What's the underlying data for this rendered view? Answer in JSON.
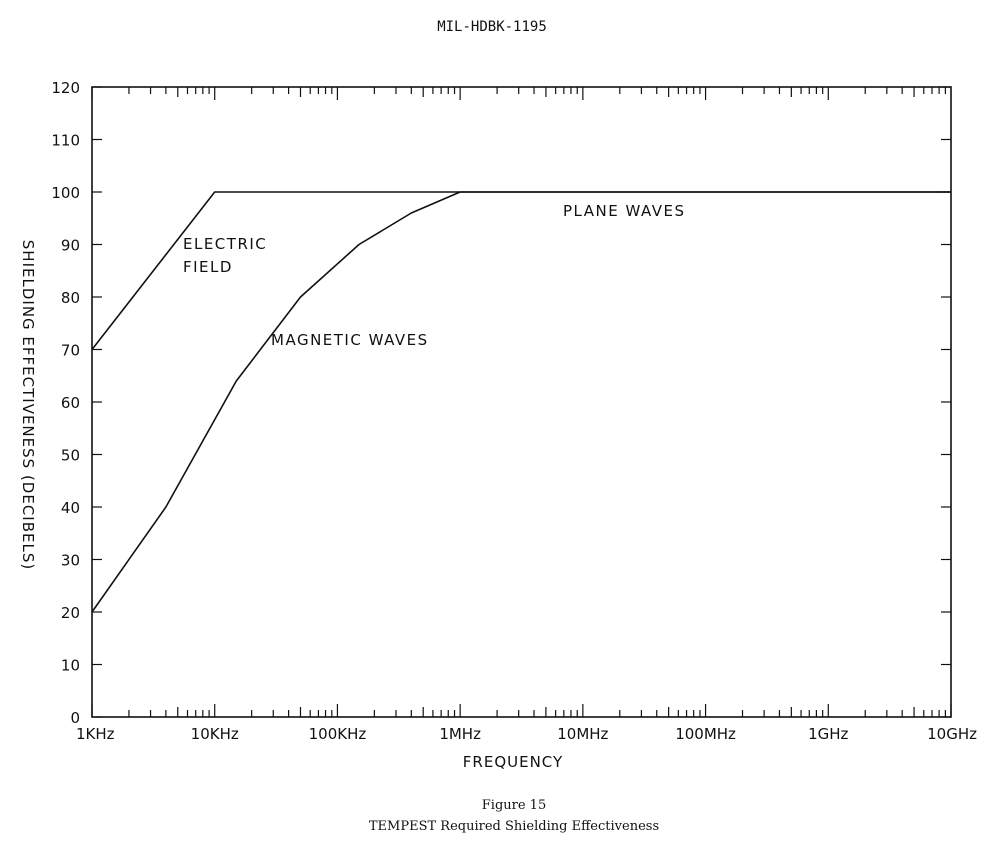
{
  "document": {
    "header": "MIL-HDBK-1195",
    "figure_number": "Figure 15",
    "figure_caption": "TEMPEST Required Shielding Effectiveness"
  },
  "chart_data": {
    "type": "line",
    "title": "",
    "xlabel": "FREQUENCY",
    "ylabel": "SHIELDING EFFECTIVENESS (DECIBELS)",
    "x_scale": "log",
    "xlim": [
      "1KHz",
      "10GHz"
    ],
    "ylim": [
      0,
      120
    ],
    "x_tick_labels": [
      "1KHz",
      "10KHz",
      "100KHz",
      "1MHz",
      "10MHz",
      "100MHz",
      "1GHz",
      "10GHz"
    ],
    "y_tick_labels": [
      "0",
      "10",
      "20",
      "30",
      "40",
      "50",
      "60",
      "70",
      "80",
      "90",
      "100",
      "110",
      "120"
    ],
    "grid": false,
    "legend": "none",
    "series": [
      {
        "name": "ELECTRIC FIELD",
        "label_text": [
          "ELECTRIC",
          "FIELD"
        ],
        "points": [
          {
            "x": "1KHz",
            "y": 70
          },
          {
            "x": "10KHz",
            "y": 100
          },
          {
            "x": "10GHz",
            "y": 100
          }
        ]
      },
      {
        "name": "MAGNETIC WAVES",
        "label_text": [
          "MAGNETIC WAVES"
        ],
        "points": [
          {
            "x": "1KHz",
            "y": 20
          },
          {
            "x": "4KHz",
            "y": 40
          },
          {
            "x": "15KHz",
            "y": 64
          },
          {
            "x": "50KHz",
            "y": 80
          },
          {
            "x": "150KHz",
            "y": 90
          },
          {
            "x": "400KHz",
            "y": 96
          },
          {
            "x": "1MHz",
            "y": 100
          },
          {
            "x": "10GHz",
            "y": 100
          }
        ]
      }
    ],
    "annotations": [
      {
        "text": "PLANE WAVES"
      }
    ]
  }
}
